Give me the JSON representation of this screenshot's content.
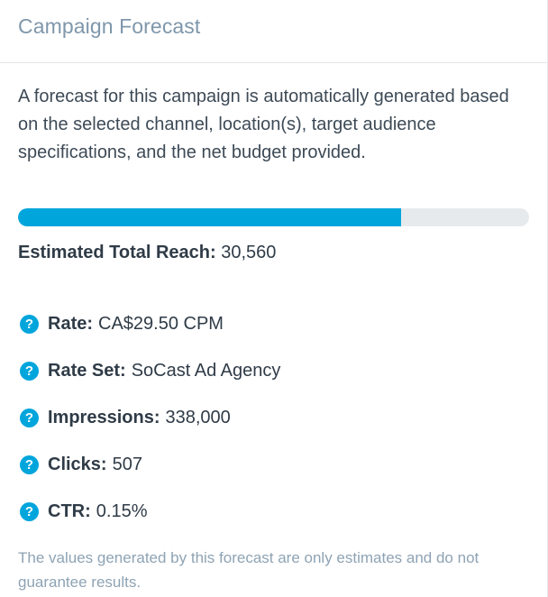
{
  "header": {
    "title": "Campaign Forecast"
  },
  "description": "A forecast for this campaign is automatically generated based on the selected channel, location(s), target audience specifications, and the net budget provided.",
  "reach": {
    "label": "Estimated Total Reach:",
    "value": "30,560",
    "progress_fraction": 0.75
  },
  "metrics": [
    {
      "label": "Rate:",
      "value": "CA$29.50 CPM",
      "icon": "help-icon"
    },
    {
      "label": "Rate Set:",
      "value": "SoCast Ad Agency",
      "icon": "help-icon"
    },
    {
      "label": "Impressions:",
      "value": "338,000",
      "icon": "help-icon"
    },
    {
      "label": "Clicks:",
      "value": "507",
      "icon": "help-icon"
    },
    {
      "label": "CTR:",
      "value": "0.15%",
      "icon": "help-icon"
    }
  ],
  "help_glyph": "?",
  "disclaimer": "The values generated by this forecast are only estimates and do not guarantee results.",
  "colors": {
    "accent": "#00a5dc",
    "title": "#7f97ab",
    "muted": "#8ea3b4",
    "track": "#e7eaec"
  }
}
